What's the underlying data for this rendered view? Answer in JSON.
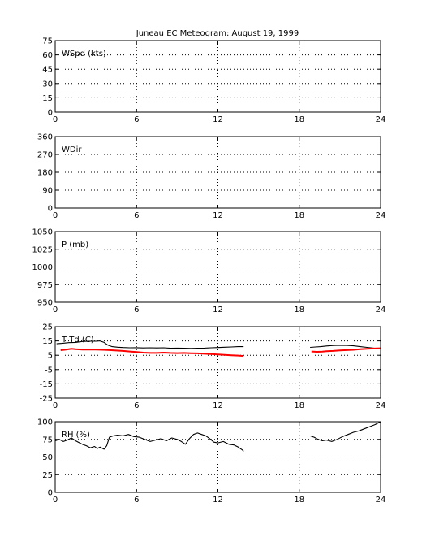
{
  "title": "Juneau EC Meteogram:     August 19, 1999",
  "chart_data": [
    {
      "type": "line",
      "panel_label": "WSpd (kts)",
      "xlim": [
        0,
        24
      ],
      "xticks": [
        0,
        6,
        12,
        18,
        24
      ],
      "ylim": [
        0,
        75
      ],
      "yticks": [
        0,
        15,
        30,
        45,
        60,
        75
      ],
      "grid": true,
      "series": []
    },
    {
      "type": "line",
      "panel_label": "WDir",
      "xlim": [
        0,
        24
      ],
      "xticks": [
        0,
        6,
        12,
        18,
        24
      ],
      "ylim": [
        0,
        360
      ],
      "yticks": [
        0,
        90,
        180,
        270,
        360
      ],
      "grid": true,
      "series": []
    },
    {
      "type": "line",
      "panel_label": "P (mb)",
      "xlim": [
        0,
        24
      ],
      "xticks": [
        0,
        6,
        12,
        18,
        24
      ],
      "ylim": [
        950,
        1050
      ],
      "yticks": [
        950,
        975,
        1000,
        1025,
        1050
      ],
      "grid": true,
      "series": []
    },
    {
      "type": "line",
      "panel_label": "T Td (C)",
      "xlim": [
        0,
        24
      ],
      "xticks": [
        0,
        6,
        12,
        18,
        24
      ],
      "ylim": [
        -25,
        25
      ],
      "yticks": [
        -25,
        -15,
        -5,
        5,
        15,
        25
      ],
      "grid": true,
      "series": [
        {
          "color": "#000000",
          "segments": [
            [
              [
                0.1,
                13
              ],
              [
                0.5,
                13.3
              ],
              [
                1,
                13.8
              ],
              [
                1.5,
                14
              ],
              [
                2,
                14.6
              ],
              [
                2.5,
                14.8
              ],
              [
                3,
                14.8
              ],
              [
                3.3,
                15
              ],
              [
                3.6,
                14
              ],
              [
                3.9,
                12
              ],
              [
                4.2,
                11
              ],
              [
                4.6,
                10.6
              ],
              [
                5,
                10.4
              ],
              [
                5.5,
                10.2
              ],
              [
                6,
                10.3
              ],
              [
                6.5,
                10.1
              ],
              [
                7,
                10.2
              ],
              [
                7.5,
                10.1
              ],
              [
                8,
                10.2
              ],
              [
                8.5,
                9.9
              ],
              [
                9,
                10
              ],
              [
                9.5,
                9.9
              ],
              [
                10,
                9.8
              ],
              [
                10.5,
                9.9
              ],
              [
                11,
                10
              ],
              [
                11.5,
                10.2
              ],
              [
                12,
                10.4
              ],
              [
                12.5,
                10.6
              ],
              [
                13,
                10.8
              ],
              [
                13.5,
                11
              ],
              [
                13.9,
                11
              ]
            ],
            [
              [
                18.8,
                10.5
              ],
              [
                19.2,
                10.8
              ],
              [
                19.6,
                11
              ],
              [
                20,
                11.5
              ],
              [
                20.5,
                11.8
              ],
              [
                21,
                12
              ],
              [
                21.5,
                11.9
              ],
              [
                22,
                11.6
              ],
              [
                22.5,
                11
              ],
              [
                23,
                10.5
              ],
              [
                23.5,
                10
              ],
              [
                24,
                9.6
              ]
            ]
          ]
        },
        {
          "color": "#ff0000",
          "segments": [
            [
              [
                0.4,
                8.5
              ],
              [
                0.8,
                9
              ],
              [
                1.2,
                9.5
              ],
              [
                1.5,
                9.2
              ],
              [
                2,
                9
              ],
              [
                2.5,
                8.9
              ],
              [
                3,
                9
              ],
              [
                3.5,
                8.8
              ],
              [
                4,
                8.6
              ],
              [
                4.5,
                8.3
              ],
              [
                5,
                8
              ],
              [
                5.5,
                7.6
              ],
              [
                6,
                7.2
              ],
              [
                6.5,
                6.8
              ],
              [
                7,
                6.6
              ],
              [
                7.5,
                6.6
              ],
              [
                8,
                6.8
              ],
              [
                8.5,
                6.6
              ],
              [
                9,
                6.5
              ],
              [
                9.5,
                6.6
              ],
              [
                10,
                6.4
              ],
              [
                10.5,
                6.3
              ],
              [
                11,
                6
              ],
              [
                11.5,
                5.8
              ],
              [
                12,
                5.5
              ],
              [
                12.5,
                5.2
              ],
              [
                13,
                5
              ],
              [
                13.5,
                4.8
              ],
              [
                13.9,
                4.5
              ]
            ],
            [
              [
                18.9,
                7.6
              ],
              [
                19.3,
                7.4
              ],
              [
                19.7,
                7.5
              ],
              [
                20,
                7.8
              ],
              [
                20.5,
                8
              ],
              [
                21,
                8.4
              ],
              [
                21.5,
                8.6
              ],
              [
                22,
                8.8
              ],
              [
                22.5,
                9.2
              ],
              [
                23,
                9.5
              ],
              [
                23.5,
                9.7
              ],
              [
                24,
                9.9
              ]
            ]
          ]
        }
      ]
    },
    {
      "type": "line",
      "panel_label": "RH (%)",
      "xlim": [
        0,
        24
      ],
      "xticks": [
        0,
        6,
        12,
        18,
        24
      ],
      "ylim": [
        0,
        100
      ],
      "yticks": [
        0,
        25,
        50,
        75,
        100
      ],
      "grid": true,
      "series": [
        {
          "color": "#000000",
          "segments": [
            [
              [
                0,
                73
              ],
              [
                0.3,
                75
              ],
              [
                0.6,
                72
              ],
              [
                0.9,
                74
              ],
              [
                1.2,
                77
              ],
              [
                1.5,
                73
              ],
              [
                1.8,
                70
              ],
              [
                2,
                68
              ],
              [
                2.3,
                66
              ],
              [
                2.6,
                63
              ],
              [
                2.9,
                65
              ],
              [
                3.1,
                62
              ],
              [
                3.3,
                64
              ],
              [
                3.6,
                61
              ],
              [
                3.8,
                66
              ],
              [
                4,
                78
              ],
              [
                4.3,
                80
              ],
              [
                4.6,
                81
              ],
              [
                5,
                80
              ],
              [
                5.4,
                82
              ],
              [
                5.8,
                79
              ],
              [
                6.2,
                78
              ],
              [
                6.6,
                75
              ],
              [
                7,
                72
              ],
              [
                7.4,
                74
              ],
              [
                7.8,
                76
              ],
              [
                8.2,
                73
              ],
              [
                8.6,
                77
              ],
              [
                9,
                75
              ],
              [
                9.3,
                72
              ],
              [
                9.6,
                68
              ],
              [
                9.9,
                76
              ],
              [
                10.2,
                82
              ],
              [
                10.5,
                84
              ],
              [
                10.8,
                82
              ],
              [
                11.1,
                80
              ],
              [
                11.4,
                76
              ],
              [
                11.7,
                71
              ],
              [
                12,
                70
              ],
              [
                12.4,
                72
              ],
              [
                12.8,
                68
              ],
              [
                13.2,
                67
              ],
              [
                13.5,
                64
              ],
              [
                13.8,
                60
              ],
              [
                13.9,
                58
              ]
            ],
            [
              [
                18.8,
                80
              ],
              [
                19.1,
                78
              ],
              [
                19.4,
                75
              ],
              [
                19.7,
                73
              ],
              [
                20,
                74
              ],
              [
                20.4,
                72
              ],
              [
                20.8,
                75
              ],
              [
                21.2,
                79
              ],
              [
                21.6,
                82
              ],
              [
                22,
                85
              ],
              [
                22.4,
                87
              ],
              [
                22.8,
                90
              ],
              [
                23.2,
                93
              ],
              [
                23.6,
                96
              ],
              [
                24,
                100
              ]
            ]
          ]
        }
      ]
    }
  ]
}
